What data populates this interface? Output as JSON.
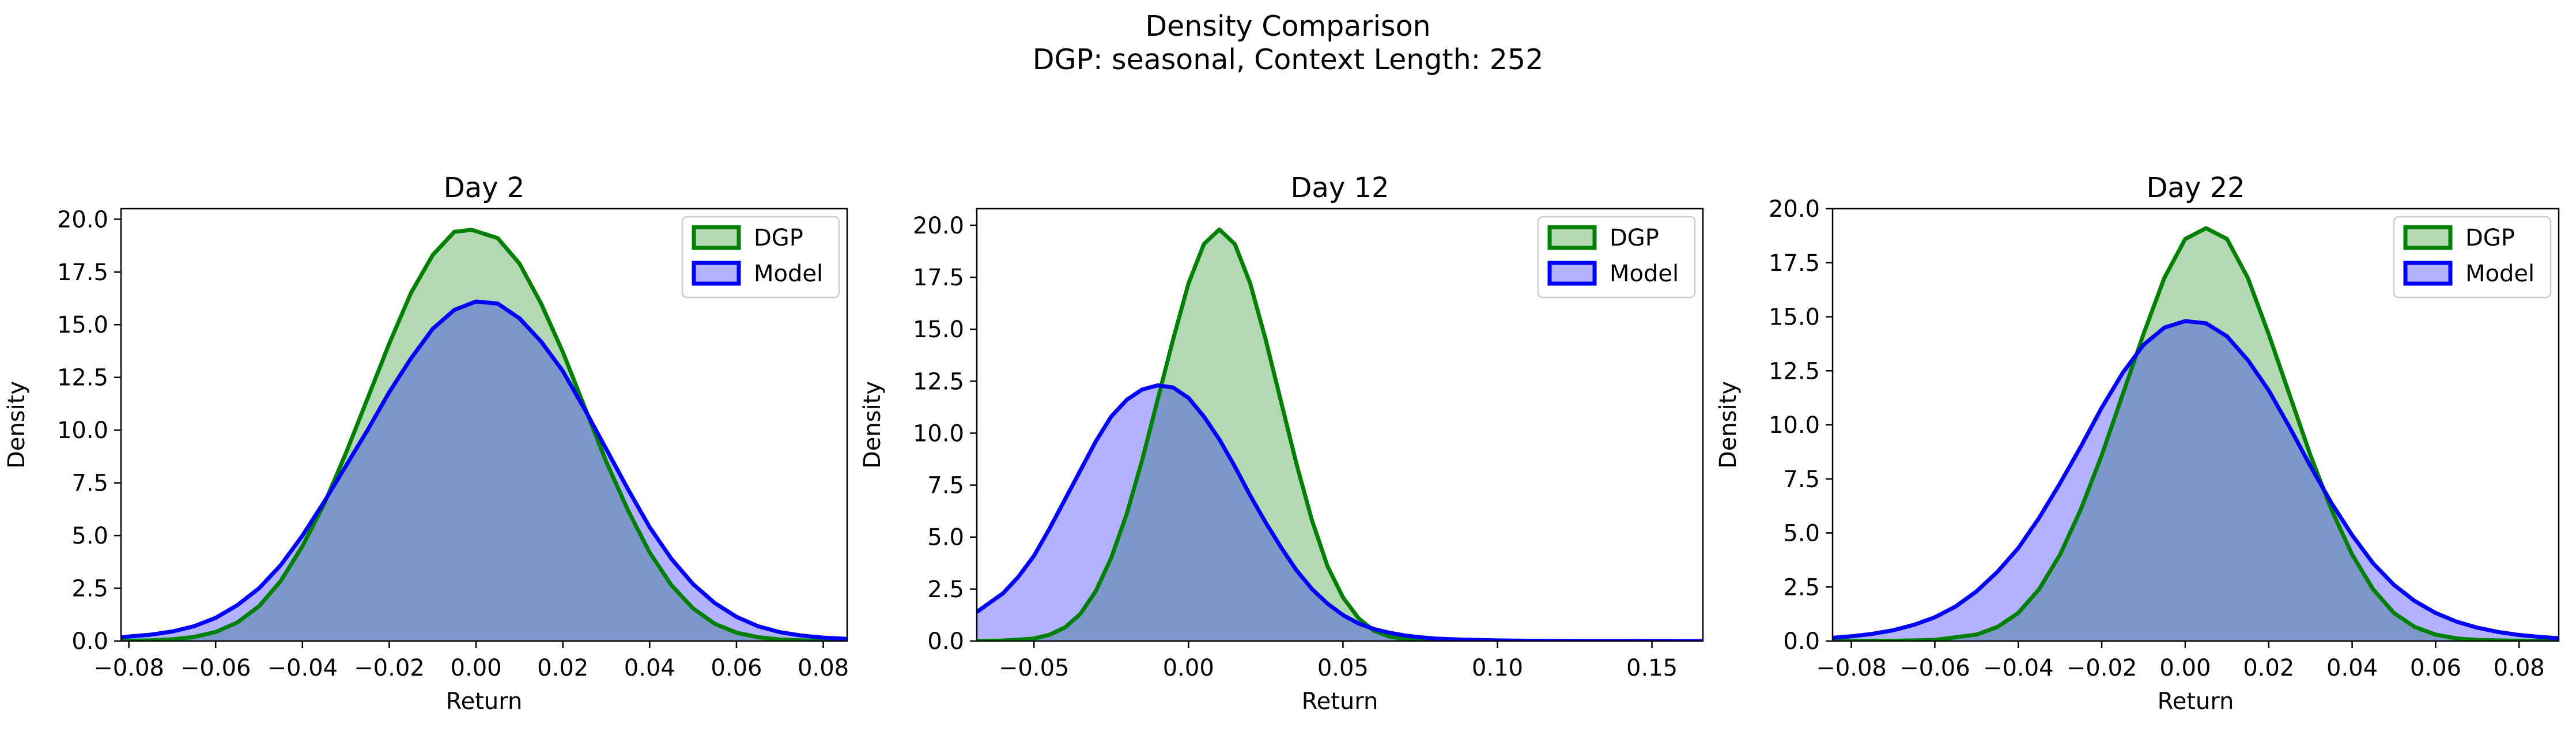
{
  "figure": {
    "title": "Density Comparison",
    "subtitle": "DGP: seasonal, Context Length: 252"
  },
  "chart_data": [
    {
      "type": "area",
      "title": "Day 2",
      "xlabel": "Return",
      "ylabel": "Density",
      "xlim": [
        -0.0818,
        0.0855
      ],
      "ylim": [
        0,
        20.5
      ],
      "xticks": [
        -0.08,
        -0.06,
        -0.04,
        -0.02,
        0.0,
        0.02,
        0.04,
        0.06,
        0.08
      ],
      "xtick_labels": [
        "−0.08",
        "−0.06",
        "−0.04",
        "−0.02",
        "0.00",
        "0.02",
        "0.04",
        "0.06",
        "0.08"
      ],
      "yticks": [
        0,
        2.5,
        5,
        7.5,
        10,
        12.5,
        15,
        17.5,
        20
      ],
      "ytick_labels": [
        "0.0",
        "2.5",
        "5.0",
        "7.5",
        "10.0",
        "12.5",
        "15.0",
        "17.5",
        "20.0"
      ],
      "legend": {
        "position": "top-right"
      },
      "series": [
        {
          "name": "DGP",
          "color": "#008000",
          "fill": "#b2d8b2",
          "x": [
            -0.0818,
            -0.075,
            -0.07,
            -0.065,
            -0.06,
            -0.055,
            -0.05,
            -0.045,
            -0.04,
            -0.035,
            -0.03,
            -0.025,
            -0.02,
            -0.015,
            -0.01,
            -0.005,
            -0.001,
            0.005,
            0.01,
            0.015,
            0.02,
            0.025,
            0.03,
            0.035,
            0.04,
            0.045,
            0.05,
            0.055,
            0.06,
            0.065,
            0.07,
            0.075,
            0.08,
            0.0855
          ],
          "y": [
            0.01,
            0.03,
            0.08,
            0.19,
            0.43,
            0.88,
            1.65,
            2.85,
            4.5,
            6.5,
            8.9,
            11.5,
            14.1,
            16.5,
            18.3,
            19.4,
            19.5,
            19.1,
            17.9,
            16.0,
            13.7,
            11.1,
            8.5,
            6.2,
            4.2,
            2.65,
            1.55,
            0.82,
            0.4,
            0.18,
            0.07,
            0.03,
            0.01,
            0.0
          ]
        },
        {
          "name": "Model",
          "color": "#0000ff",
          "fill": "#b2b2ff",
          "x": [
            -0.0818,
            -0.075,
            -0.07,
            -0.065,
            -0.06,
            -0.055,
            -0.05,
            -0.045,
            -0.04,
            -0.035,
            -0.03,
            -0.025,
            -0.02,
            -0.015,
            -0.01,
            -0.005,
            0.0,
            0.005,
            0.01,
            0.015,
            0.02,
            0.025,
            0.03,
            0.035,
            0.04,
            0.045,
            0.05,
            0.055,
            0.06,
            0.065,
            0.07,
            0.075,
            0.08,
            0.0855
          ],
          "y": [
            0.18,
            0.3,
            0.45,
            0.7,
            1.1,
            1.7,
            2.5,
            3.6,
            5.0,
            6.6,
            8.3,
            10.0,
            11.8,
            13.4,
            14.8,
            15.7,
            16.1,
            16.0,
            15.3,
            14.2,
            12.8,
            11.0,
            9.1,
            7.2,
            5.4,
            3.9,
            2.7,
            1.8,
            1.15,
            0.7,
            0.42,
            0.26,
            0.16,
            0.1
          ]
        }
      ]
    },
    {
      "type": "area",
      "title": "Day 12",
      "xlabel": "Return",
      "ylabel": "Density",
      "xlim": [
        -0.0685,
        0.1665
      ],
      "ylim": [
        0,
        20.8
      ],
      "xticks": [
        -0.05,
        0.0,
        0.05,
        0.1,
        0.15
      ],
      "xtick_labels": [
        "−0.05",
        "0.00",
        "0.05",
        "0.10",
        "0.15"
      ],
      "yticks": [
        0,
        2.5,
        5,
        7.5,
        10,
        12.5,
        15,
        17.5,
        20
      ],
      "ytick_labels": [
        "0.0",
        "2.5",
        "5.0",
        "7.5",
        "10.0",
        "12.5",
        "15.0",
        "17.5",
        "20.0"
      ],
      "legend": {
        "position": "top-right"
      },
      "series": [
        {
          "name": "DGP",
          "color": "#008000",
          "fill": "#b2d8b2",
          "x": [
            -0.0685,
            -0.06,
            -0.05,
            -0.045,
            -0.04,
            -0.035,
            -0.03,
            -0.025,
            -0.02,
            -0.015,
            -0.01,
            -0.005,
            0.0,
            0.005,
            0.01,
            0.015,
            0.02,
            0.025,
            0.03,
            0.035,
            0.04,
            0.045,
            0.05,
            0.055,
            0.06,
            0.065,
            0.07,
            0.08,
            0.1,
            0.1665
          ],
          "y": [
            0.0,
            0.02,
            0.12,
            0.3,
            0.65,
            1.3,
            2.4,
            4.0,
            6.1,
            8.7,
            11.6,
            14.5,
            17.2,
            19.1,
            19.8,
            19.1,
            17.2,
            14.5,
            11.5,
            8.5,
            5.8,
            3.6,
            2.1,
            1.1,
            0.5,
            0.22,
            0.09,
            0.01,
            0.0,
            0.0
          ]
        },
        {
          "name": "Model",
          "color": "#0000ff",
          "fill": "#b2b2ff",
          "x": [
            -0.0685,
            -0.06,
            -0.055,
            -0.05,
            -0.045,
            -0.04,
            -0.035,
            -0.03,
            -0.025,
            -0.02,
            -0.015,
            -0.01,
            -0.005,
            0.0,
            0.005,
            0.01,
            0.015,
            0.02,
            0.025,
            0.03,
            0.035,
            0.04,
            0.045,
            0.05,
            0.055,
            0.06,
            0.065,
            0.07,
            0.075,
            0.08,
            0.09,
            0.1,
            0.11,
            0.12,
            0.13,
            0.14,
            0.1665
          ],
          "y": [
            1.4,
            2.3,
            3.1,
            4.1,
            5.4,
            6.8,
            8.2,
            9.6,
            10.8,
            11.6,
            12.1,
            12.3,
            12.2,
            11.7,
            10.8,
            9.7,
            8.4,
            7.0,
            5.7,
            4.5,
            3.4,
            2.5,
            1.8,
            1.25,
            0.85,
            0.58,
            0.4,
            0.27,
            0.18,
            0.12,
            0.06,
            0.03,
            0.015,
            0.008,
            0.004,
            0.002,
            0.0
          ]
        }
      ]
    },
    {
      "type": "area",
      "title": "Day 22",
      "xlabel": "Return",
      "ylabel": "Density",
      "xlim": [
        -0.0845,
        0.0895
      ],
      "ylim": [
        0,
        20.0
      ],
      "xticks": [
        -0.08,
        -0.06,
        -0.04,
        -0.02,
        0.0,
        0.02,
        0.04,
        0.06,
        0.08
      ],
      "xtick_labels": [
        "−0.08",
        "−0.06",
        "−0.04",
        "−0.02",
        "0.00",
        "0.02",
        "0.04",
        "0.06",
        "0.08"
      ],
      "yticks": [
        0,
        2.5,
        5,
        7.5,
        10,
        12.5,
        15,
        17.5,
        20
      ],
      "ytick_labels": [
        "0.0",
        "2.5",
        "5.0",
        "7.5",
        "10.0",
        "12.5",
        "15.0",
        "17.5",
        "20.0"
      ],
      "legend": {
        "position": "top-right"
      },
      "series": [
        {
          "name": "DGP",
          "color": "#008000",
          "fill": "#b2d8b2",
          "x": [
            -0.0845,
            -0.07,
            -0.06,
            -0.05,
            -0.045,
            -0.04,
            -0.035,
            -0.03,
            -0.025,
            -0.02,
            -0.015,
            -0.01,
            -0.005,
            0.0,
            0.005,
            0.01,
            0.015,
            0.02,
            0.025,
            0.03,
            0.035,
            0.04,
            0.045,
            0.05,
            0.055,
            0.06,
            0.065,
            0.07,
            0.08,
            0.0895
          ],
          "y": [
            0.0,
            0.01,
            0.05,
            0.3,
            0.65,
            1.3,
            2.4,
            4.0,
            6.1,
            8.6,
            11.4,
            14.2,
            16.8,
            18.6,
            19.1,
            18.6,
            16.8,
            14.2,
            11.4,
            8.6,
            6.1,
            4.0,
            2.4,
            1.3,
            0.65,
            0.3,
            0.12,
            0.05,
            0.01,
            0.0
          ]
        },
        {
          "name": "Model",
          "color": "#0000ff",
          "fill": "#b2b2ff",
          "x": [
            -0.0845,
            -0.08,
            -0.075,
            -0.07,
            -0.065,
            -0.06,
            -0.055,
            -0.05,
            -0.045,
            -0.04,
            -0.035,
            -0.03,
            -0.025,
            -0.02,
            -0.015,
            -0.01,
            -0.005,
            0.0,
            0.005,
            0.01,
            0.015,
            0.02,
            0.025,
            0.03,
            0.035,
            0.04,
            0.045,
            0.05,
            0.055,
            0.06,
            0.065,
            0.07,
            0.075,
            0.08,
            0.085,
            0.0895
          ],
          "y": [
            0.15,
            0.22,
            0.33,
            0.5,
            0.75,
            1.1,
            1.6,
            2.3,
            3.2,
            4.3,
            5.7,
            7.3,
            9.0,
            10.8,
            12.4,
            13.7,
            14.5,
            14.8,
            14.7,
            14.1,
            13.0,
            11.6,
            9.9,
            8.1,
            6.4,
            4.9,
            3.6,
            2.6,
            1.85,
            1.3,
            0.9,
            0.62,
            0.42,
            0.28,
            0.19,
            0.13
          ]
        }
      ]
    }
  ]
}
